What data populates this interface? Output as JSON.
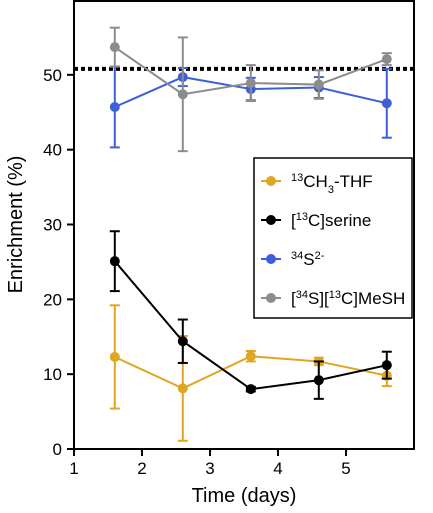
{
  "chart_data": {
    "type": "line",
    "xlabel": "Time (days)",
    "ylabel": "Enrichment (%)",
    "xlim": [
      1,
      6
    ],
    "ylim": [
      0,
      60
    ],
    "xticks": [
      1,
      2,
      3,
      4,
      5
    ],
    "yticks": [
      0,
      10,
      20,
      30,
      40,
      50
    ],
    "grid": false,
    "legend_position": "right",
    "reference_line": {
      "y": 50.8,
      "style": "dotted",
      "color": "#000000"
    },
    "series": [
      {
        "name": "¹³CH₃-THF",
        "label_parts": [
          [
            "sup",
            "13"
          ],
          [
            "txt",
            "CH"
          ],
          [
            "sub",
            "3"
          ],
          [
            "txt",
            "-THF"
          ]
        ],
        "color": "#e0a521",
        "x": [
          1.6,
          2.6,
          3.6,
          4.6,
          5.6
        ],
        "y": [
          12.3,
          8.1,
          12.4,
          11.7,
          9.8
        ],
        "err": [
          6.9,
          7.0,
          0.7,
          0.5,
          1.4
        ]
      },
      {
        "name": "[¹³C]serine",
        "label_parts": [
          [
            "txt",
            "["
          ],
          [
            "sup",
            "13"
          ],
          [
            "txt",
            "C]serine"
          ]
        ],
        "color": "#000000",
        "x": [
          1.6,
          2.6,
          3.6,
          4.6,
          5.6
        ],
        "y": [
          25.1,
          14.4,
          8.0,
          9.2,
          11.2
        ],
        "err": [
          4.0,
          2.9,
          0.3,
          2.5,
          1.8
        ]
      },
      {
        "name": "³⁴S²⁻",
        "label_parts": [
          [
            "sup",
            "34"
          ],
          [
            "txt",
            "S"
          ],
          [
            "sup",
            "2-"
          ]
        ],
        "color": "#3d5fd9",
        "x": [
          1.6,
          2.6,
          3.6,
          4.6,
          5.6
        ],
        "y": [
          45.7,
          49.7,
          48.1,
          48.3,
          46.2
        ],
        "err": [
          5.4,
          1.2,
          1.5,
          1.4,
          4.6
        ]
      },
      {
        "name": "[³⁴S][¹³C]MeSH",
        "label_parts": [
          [
            "txt",
            "["
          ],
          [
            "sup",
            "34"
          ],
          [
            "txt",
            "S]["
          ],
          [
            "sup",
            "13"
          ],
          [
            "txt",
            "C]MeSH"
          ]
        ],
        "color": "#8c8c8c",
        "x": [
          1.6,
          2.6,
          3.6,
          4.6,
          5.6
        ],
        "y": [
          53.7,
          47.4,
          48.9,
          48.7,
          52.1
        ],
        "err": [
          2.6,
          7.6,
          2.4,
          1.9,
          0.8
        ]
      }
    ]
  }
}
